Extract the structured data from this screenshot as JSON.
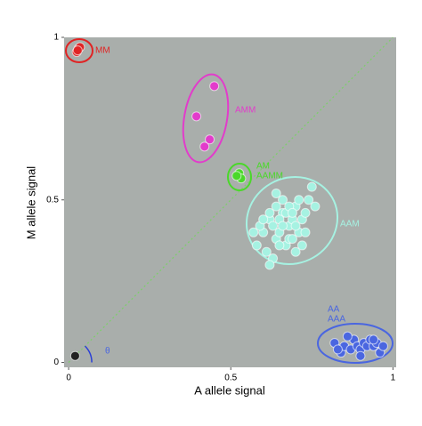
{
  "chart_data": {
    "type": "scatter",
    "x_label": "A allele signal",
    "y_label": "M allele signal",
    "xlim": [
      -0.014,
      1.01
    ],
    "ylim": [
      -0.015,
      1
    ],
    "xticks": [
      0,
      0.5,
      1
    ],
    "yticks": [
      0,
      0.5,
      1
    ],
    "background": "#a9aeab",
    "series": [
      {
        "name": "MM",
        "color": "#e02424",
        "x": [
          0.025,
          0.03,
          0.035,
          0.028
        ],
        "values": [
          0.955,
          0.965,
          0.97,
          0.96
        ]
      },
      {
        "name": "AMM",
        "color": "#e23ccb",
        "x": [
          0.449,
          0.394,
          0.435,
          0.419
        ],
        "values": [
          0.85,
          0.757,
          0.686,
          0.664
        ]
      },
      {
        "name": "AM",
        "color": "#4ad82a",
        "x": [
          0.526,
          0.532,
          0.518
        ],
        "values": [
          0.582,
          0.566,
          0.574
        ]
      },
      {
        "name": "AAM",
        "color": "#a6f2e2",
        "x": [
          0.6,
          0.62,
          0.64,
          0.66,
          0.68,
          0.7,
          0.72,
          0.74,
          0.58,
          0.61,
          0.63,
          0.65,
          0.67,
          0.69,
          0.71,
          0.73,
          0.59,
          0.62,
          0.64,
          0.66,
          0.68,
          0.7,
          0.72,
          0.75,
          0.63,
          0.65,
          0.67,
          0.69,
          0.71,
          0.6,
          0.62,
          0.66,
          0.68,
          0.7,
          0.64,
          0.73,
          0.57,
          0.76,
          0.69,
          0.65
        ],
        "values": [
          0.4,
          0.44,
          0.38,
          0.46,
          0.42,
          0.48,
          0.44,
          0.5,
          0.36,
          0.34,
          0.42,
          0.4,
          0.36,
          0.44,
          0.4,
          0.46,
          0.42,
          0.46,
          0.48,
          0.5,
          0.38,
          0.42,
          0.36,
          0.54,
          0.32,
          0.44,
          0.46,
          0.38,
          0.5,
          0.44,
          0.3,
          0.42,
          0.48,
          0.34,
          0.52,
          0.4,
          0.4,
          0.48,
          0.46,
          0.36
        ]
      },
      {
        "name": "AA",
        "color": "#4a66e0",
        "x": [
          0.82,
          0.84,
          0.85,
          0.87,
          0.88,
          0.89,
          0.9,
          0.91,
          0.92,
          0.93,
          0.94,
          0.95,
          0.96,
          0.97,
          0.86,
          0.9,
          0.94,
          0.83
        ],
        "values": [
          0.06,
          0.03,
          0.05,
          0.04,
          0.07,
          0.05,
          0.04,
          0.06,
          0.05,
          0.07,
          0.05,
          0.06,
          0.03,
          0.05,
          0.08,
          0.02,
          0.07,
          0.04
        ]
      },
      {
        "color": "#222222",
        "x": [
          0.02
        ],
        "values": [
          0.02
        ]
      }
    ],
    "annotations": [
      "AAMM",
      "AAA",
      "θ"
    ]
  }
}
